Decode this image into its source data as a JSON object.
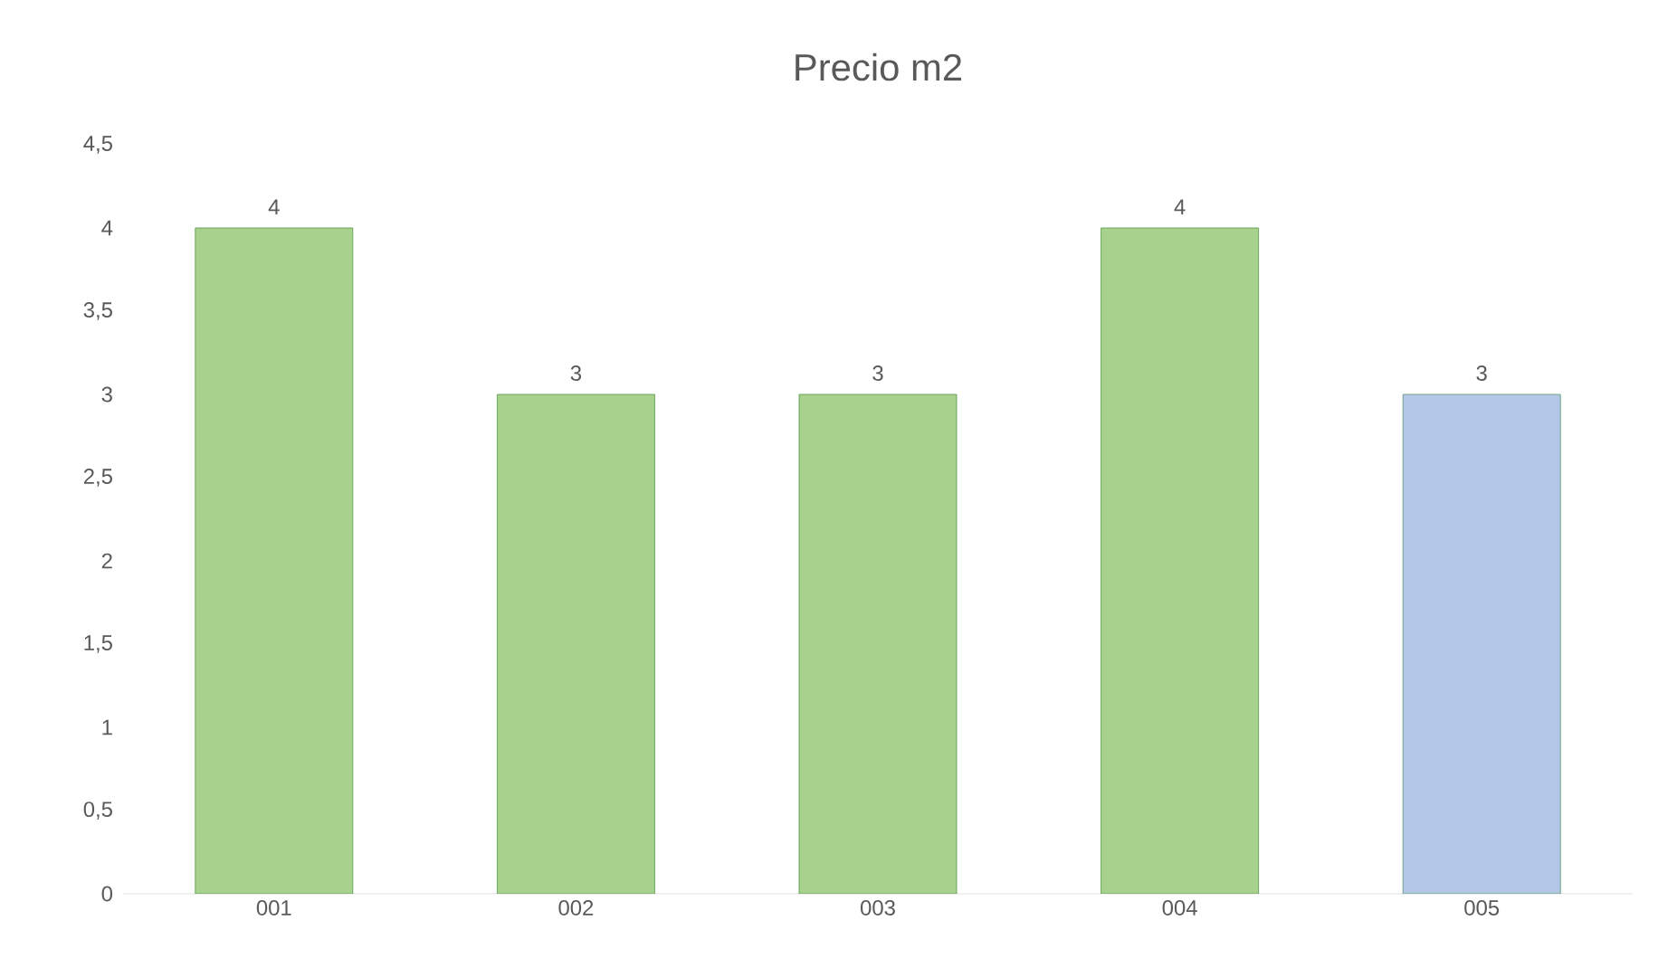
{
  "chart_data": {
    "type": "bar",
    "title": "Precio m2",
    "categories": [
      "001",
      "002",
      "003",
      "004",
      "005"
    ],
    "values": [
      4,
      3,
      3,
      4,
      3
    ],
    "colors": [
      "#a9d18e",
      "#a9d18e",
      "#a9d18e",
      "#a9d18e",
      "#b4c7e7"
    ],
    "ylim": [
      0,
      4.5
    ],
    "yticks": [
      0,
      {
        "value": 0.5,
        "label": "0,5"
      },
      1,
      {
        "value": 1.5,
        "label": "1,5"
      },
      2,
      {
        "value": 2.5,
        "label": "2,5"
      },
      3,
      {
        "value": 3.5,
        "label": "3,5"
      },
      4,
      {
        "value": 4.5,
        "label": "4,5"
      }
    ],
    "data_labels": true
  }
}
